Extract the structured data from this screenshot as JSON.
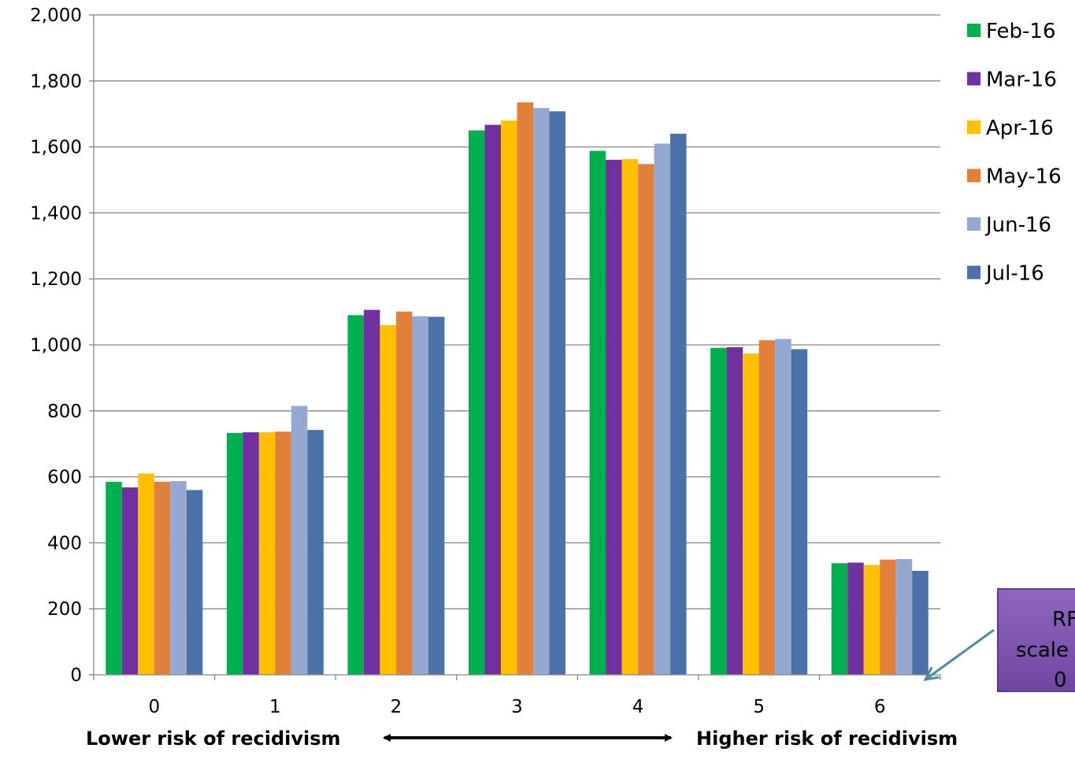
{
  "chart_data": {
    "type": "bar",
    "categories": [
      "0",
      "1",
      "2",
      "3",
      "4",
      "5",
      "6"
    ],
    "series": [
      {
        "name": "Feb-16",
        "color": "#00b050",
        "values": [
          585,
          733,
          1090,
          1650,
          1588,
          991,
          338
        ]
      },
      {
        "name": "Mar-16",
        "color": "#7030a0",
        "values": [
          568,
          735,
          1106,
          1667,
          1561,
          993,
          340
        ]
      },
      {
        "name": "Apr-16",
        "color": "#ffc000",
        "values": [
          610,
          735,
          1060,
          1680,
          1563,
          974,
          333
        ]
      },
      {
        "name": "May-16",
        "color": "#e0803a",
        "values": [
          585,
          737,
          1101,
          1735,
          1548,
          1014,
          349
        ]
      },
      {
        "name": "Jun-16",
        "color": "#95a8d2",
        "values": [
          587,
          815,
          1087,
          1718,
          1610,
          1018,
          351
        ]
      },
      {
        "name": "Jul-16",
        "color": "#4a72a8",
        "values": [
          560,
          742,
          1085,
          1708,
          1640,
          987,
          315
        ]
      }
    ],
    "yticks": [
      "0",
      "200",
      "400",
      "600",
      "800",
      "1,000",
      "1,200",
      "1,400",
      "1,600",
      "1,800",
      "2,000"
    ],
    "ylim": [
      0,
      2000
    ],
    "grid": true,
    "legend_position": "right",
    "x_note_left": "Lower risk of recidivism",
    "x_note_right": "Higher risk of recidivism",
    "callout_lines": [
      "RF",
      "scale",
      "0"
    ],
    "colors": {
      "gridline": "#868686",
      "axis": "#868686",
      "callout_fill_top": "#9067c0",
      "callout_fill_bottom": "#6e46a0",
      "callout_arrow": "#4f8ea0"
    }
  }
}
